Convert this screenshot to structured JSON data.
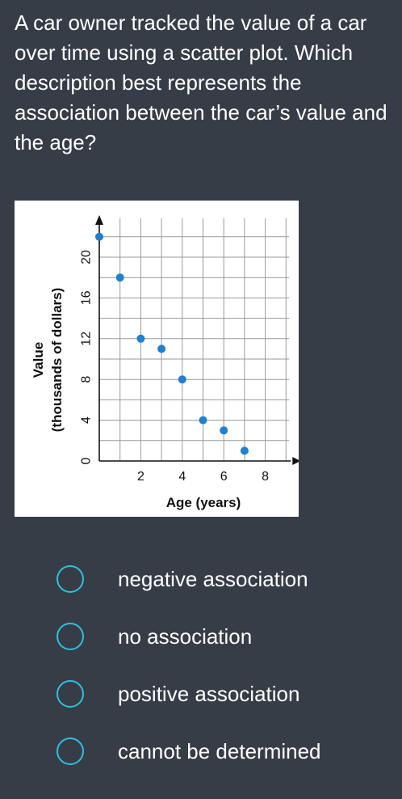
{
  "question": {
    "text": "A car owner tracked the value of a car over time using a scatter plot. Which description best represents the association between the car’s value and the age?"
  },
  "chart_data": {
    "type": "scatter",
    "xlabel": "Age (years)",
    "ylabel": "Value",
    "ylabel_sub": "(thousands of dollars)",
    "xlim": [
      0,
      9
    ],
    "ylim": [
      0,
      23
    ],
    "xticks": [
      2,
      4,
      6,
      8
    ],
    "yticks": [
      0,
      4,
      8,
      12,
      16,
      20
    ],
    "grid": true,
    "point_color": "#1f7fd1",
    "points": [
      {
        "x": 0,
        "y": 22
      },
      {
        "x": 1,
        "y": 18
      },
      {
        "x": 2,
        "y": 12
      },
      {
        "x": 3,
        "y": 11
      },
      {
        "x": 4,
        "y": 8
      },
      {
        "x": 5,
        "y": 4
      },
      {
        "x": 6,
        "y": 3
      },
      {
        "x": 7,
        "y": 1
      }
    ]
  },
  "options": [
    {
      "label": "negative association"
    },
    {
      "label": "no association"
    },
    {
      "label": "positive association"
    },
    {
      "label": "cannot be determined"
    }
  ],
  "colors": {
    "background": "#363d47",
    "radio_border": "#2ec0df",
    "text": "#ffffff"
  }
}
